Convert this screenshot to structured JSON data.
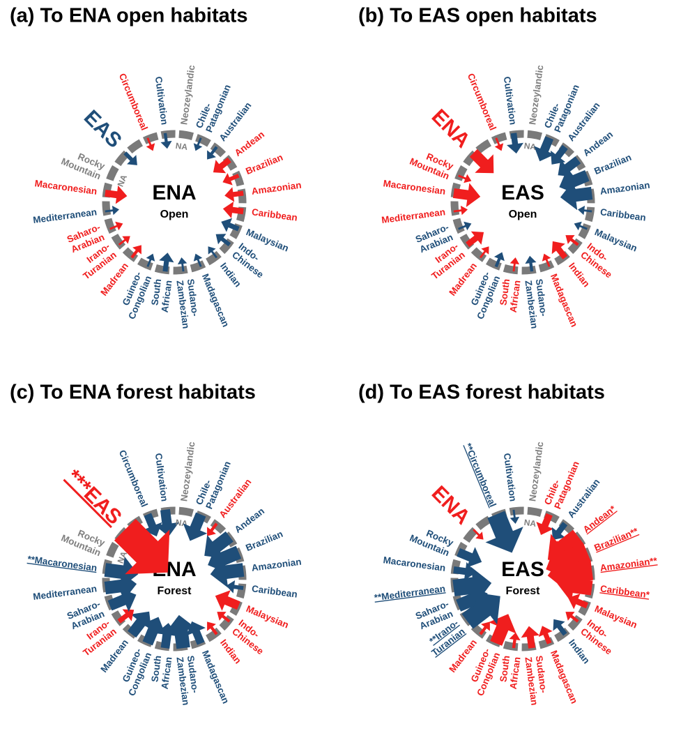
{
  "panels": [
    {
      "title": "(a) To ENA open habitats",
      "center": "ENA",
      "subcenter": "Open",
      "source": {
        "label": [
          "EAS"
        ],
        "color": "#1f4e79",
        "value": 3
      },
      "regions": [
        {
          "label": [
            "Cultivation"
          ],
          "color": "#1f4e79",
          "value": 2
        },
        {
          "label": [
            "Neozeylandic"
          ],
          "color": "#7f7f7f",
          "note": "NA"
        },
        {
          "label": [
            "Chile-",
            "Patagonian"
          ],
          "color": "#1f4e79",
          "value": 1
        },
        {
          "label": [
            "Australian"
          ],
          "color": "#1f4e79",
          "value": 2
        },
        {
          "label": [
            "Andean"
          ],
          "color": "#f01e1e",
          "value": 5
        },
        {
          "label": [
            "Brazilian"
          ],
          "color": "#f01e1e",
          "value": 3
        },
        {
          "label": [
            "Amazonian"
          ],
          "color": "#f01e1e",
          "value": 4
        },
        {
          "label": [
            "Caribbean"
          ],
          "color": "#f01e1e",
          "value": 5
        },
        {
          "label": [
            "Malaysian"
          ],
          "color": "#1f4e79",
          "value": 4
        },
        {
          "label": [
            "Indo-",
            "Chinese"
          ],
          "color": "#1f4e79",
          "value": 3
        },
        {
          "label": [
            "Indian"
          ],
          "color": "#1f4e79",
          "value": 1
        },
        {
          "label": [
            "Madagascan"
          ],
          "color": "#1f4e79",
          "value": 1
        },
        {
          "label": [
            "Sudano-",
            "Zambezian"
          ],
          "color": "#1f4e79",
          "value": 1
        },
        {
          "label": [
            "South",
            "African"
          ],
          "color": "#1f4e79",
          "value": 4
        },
        {
          "label": [
            "Guineo-",
            "Congolian"
          ],
          "color": "#1f4e79",
          "value": 1
        },
        {
          "label": [
            "Madrean"
          ],
          "color": "#f01e1e",
          "value": 2
        },
        {
          "label": [
            "Irano-",
            "Turanian"
          ],
          "color": "#f01e1e",
          "value": 1
        },
        {
          "label": [
            "Saharo-",
            "Arabian"
          ],
          "color": "#f01e1e",
          "value": 1
        },
        {
          "label": [
            "Mediterranean"
          ],
          "color": "#1f4e79",
          "value": 1
        },
        {
          "label": [
            "Macaronesian"
          ],
          "color": "#f01e1e",
          "value": 6
        },
        {
          "label": [
            "Rocky",
            "Mountain"
          ],
          "color": "#7f7f7f",
          "note": "NA"
        },
        {
          "label": [
            "Circumboreal"
          ],
          "color": "#f01e1e",
          "value": 1
        }
      ]
    },
    {
      "title": "(b) To EAS open habitats",
      "center": "EAS",
      "subcenter": "Open",
      "source": {
        "label": [
          "ENA"
        ],
        "color": "#f01e1e",
        "value": 10
      },
      "regions": [
        {
          "label": [
            "Cultivation"
          ],
          "color": "#1f4e79",
          "value": 5
        },
        {
          "label": [
            "Neozeylandic"
          ],
          "color": "#7f7f7f",
          "note": "NA"
        },
        {
          "label": [
            "Chile-",
            "Patagonian"
          ],
          "color": "#1f4e79",
          "value": 8
        },
        {
          "label": [
            "Australian"
          ],
          "color": "#1f4e79",
          "value": 6
        },
        {
          "label": [
            "Andean"
          ],
          "color": "#1f4e79",
          "value": 8
        },
        {
          "label": [
            "Brazilian"
          ],
          "color": "#1f4e79",
          "value": 11
        },
        {
          "label": [
            "Amazonian"
          ],
          "color": "#1f4e79",
          "value": 12
        },
        {
          "label": [
            "Caribbean"
          ],
          "color": "#1f4e79",
          "value": 1
        },
        {
          "label": [
            "Malaysian"
          ],
          "color": "#1f4e79",
          "value": 1
        },
        {
          "label": [
            "Indo-",
            "Chinese"
          ],
          "color": "#f01e1e",
          "value": 2
        },
        {
          "label": [
            "Indian"
          ],
          "color": "#f01e1e",
          "value": 5
        },
        {
          "label": [
            "Madagascan"
          ],
          "color": "#f01e1e",
          "value": 1
        },
        {
          "label": [
            "Sudano-",
            "Zambezian"
          ],
          "color": "#1f4e79",
          "value": 2
        },
        {
          "label": [
            "South",
            "African"
          ],
          "color": "#f01e1e",
          "value": 1
        },
        {
          "label": [
            "Guineo-",
            "Congolian"
          ],
          "color": "#1f4e79",
          "value": 2
        },
        {
          "label": [
            "Madrean"
          ],
          "color": "#f01e1e",
          "value": 1
        },
        {
          "label": [
            "Irano-",
            "Turanian"
          ],
          "color": "#f01e1e",
          "value": 5
        },
        {
          "label": [
            "Saharo-",
            "Arabian"
          ],
          "color": "#1f4e79",
          "value": 1
        },
        {
          "label": [
            "Mediterranean"
          ],
          "color": "#f01e1e",
          "value": 1
        },
        {
          "label": [
            "Macaronesian"
          ],
          "color": "#f01e1e",
          "value": 9
        },
        {
          "label": [
            "Rocky",
            "Mountain"
          ],
          "color": "#f01e1e",
          "value": 1
        },
        {
          "label": [
            "Circumboreal"
          ],
          "color": "#f01e1e",
          "value": 1
        }
      ]
    },
    {
      "title": "(c) To ENA forest habitats",
      "center": "ENA",
      "subcenter": "Forest",
      "source": {
        "label": [
          "***EAS"
        ],
        "color": "#f01e1e",
        "value": 30,
        "underline": true
      },
      "regions": [
        {
          "label": [
            "Cultivation"
          ],
          "color": "#1f4e79",
          "value": 9
        },
        {
          "label": [
            "Neozeylandic"
          ],
          "color": "#7f7f7f",
          "note": "NA"
        },
        {
          "label": [
            "Chile-",
            "Patagonian"
          ],
          "color": "#1f4e79",
          "value": 10
        },
        {
          "label": [
            "Australian"
          ],
          "color": "#f01e1e",
          "value": 2
        },
        {
          "label": [
            "Andean"
          ],
          "color": "#1f4e79",
          "value": 12
        },
        {
          "label": [
            "Brazilian"
          ],
          "color": "#1f4e79",
          "value": 13
        },
        {
          "label": [
            "Amazonian"
          ],
          "color": "#1f4e79",
          "value": 13
        },
        {
          "label": [
            "Caribbean"
          ],
          "color": "#1f4e79",
          "value": 3
        },
        {
          "label": [
            "Malaysian"
          ],
          "color": "#f01e1e",
          "value": 8
        },
        {
          "label": [
            "Indo-",
            "Chinese"
          ],
          "color": "#f01e1e",
          "value": 2
        },
        {
          "label": [
            "Indian"
          ],
          "color": "#f01e1e",
          "value": 2
        },
        {
          "label": [
            "Madagascan"
          ],
          "color": "#1f4e79",
          "value": 7
        },
        {
          "label": [
            "Sudano-",
            "Zambezian"
          ],
          "color": "#1f4e79",
          "value": 13
        },
        {
          "label": [
            "South",
            "African"
          ],
          "color": "#1f4e79",
          "value": 8
        },
        {
          "label": [
            "Guineo-",
            "Congolian"
          ],
          "color": "#1f4e79",
          "value": 10
        },
        {
          "label": [
            "Madrean"
          ],
          "color": "#1f4e79",
          "value": 10
        },
        {
          "label": [
            "Irano-",
            "Turanian"
          ],
          "color": "#f01e1e",
          "value": 4
        },
        {
          "label": [
            "Saharo-",
            "Arabian"
          ],
          "color": "#1f4e79",
          "value": 10
        },
        {
          "label": [
            "Mediterranean"
          ],
          "color": "#1f4e79",
          "value": 12
        },
        {
          "label": [
            "**Macaronesian"
          ],
          "color": "#1f4e79",
          "value": 13,
          "underline": true
        },
        {
          "label": [
            "Rocky",
            "Mountain"
          ],
          "color": "#7f7f7f",
          "note": "NA"
        },
        {
          "label": [
            "Circumboreal"
          ],
          "color": "#1f4e79",
          "value": 7
        }
      ]
    },
    {
      "title": "(d) To EAS forest habitats",
      "center": "EAS",
      "subcenter": "Forest",
      "source": {
        "label": [
          "ENA"
        ],
        "color": "#f01e1e",
        "value": 1
      },
      "regions": [
        {
          "label": [
            "Cultivation"
          ],
          "color": "#1f4e79",
          "value": 1
        },
        {
          "label": [
            "Neozeylandic"
          ],
          "color": "#7f7f7f",
          "note": "NA"
        },
        {
          "label": [
            "Chile-",
            "Patagonian"
          ],
          "color": "#f01e1e",
          "value": 6
        },
        {
          "label": [
            "Australian"
          ],
          "color": "#1f4e79",
          "value": 5
        },
        {
          "label": [
            "Andean*"
          ],
          "color": "#f01e1e",
          "value": 16,
          "underline": true
        },
        {
          "label": [
            "Brazilian**"
          ],
          "color": "#f01e1e",
          "value": 20,
          "underline": true
        },
        {
          "label": [
            "Amazonian**"
          ],
          "color": "#f01e1e",
          "value": 20,
          "underline": true
        },
        {
          "label": [
            "Caribbean*"
          ],
          "color": "#f01e1e",
          "value": 14,
          "underline": true
        },
        {
          "label": [
            "Malaysian"
          ],
          "color": "#f01e1e",
          "value": 5
        },
        {
          "label": [
            "Indo-",
            "Chinese"
          ],
          "color": "#f01e1e",
          "value": 2
        },
        {
          "label": [
            "Indian"
          ],
          "color": "#1f4e79",
          "value": 4
        },
        {
          "label": [
            "Madagascan"
          ],
          "color": "#f01e1e",
          "value": 4
        },
        {
          "label": [
            "Sudano-",
            "Zambezian"
          ],
          "color": "#f01e1e",
          "value": 6
        },
        {
          "label": [
            "South",
            "African"
          ],
          "color": "#f01e1e",
          "value": 2
        },
        {
          "label": [
            "Guineo-",
            "Congolian"
          ],
          "color": "#f01e1e",
          "value": 12
        },
        {
          "label": [
            "Madrean"
          ],
          "color": "#f01e1e",
          "value": 2
        },
        {
          "label": [
            "**Irano-",
            "Turanian"
          ],
          "color": "#1f4e79",
          "value": 18,
          "underline": true
        },
        {
          "label": [
            "Saharo-",
            "Arabian"
          ],
          "color": "#1f4e79",
          "value": 12
        },
        {
          "label": [
            "**Mediterranean"
          ],
          "color": "#1f4e79",
          "value": 16,
          "underline": true
        },
        {
          "label": [
            "Macaronesian"
          ],
          "color": "#1f4e79",
          "value": 6
        },
        {
          "label": [
            "Rocky",
            "Mountain"
          ],
          "color": "#1f4e79",
          "value": 8
        },
        {
          "label": [
            "**Circumboreal"
          ],
          "color": "#1f4e79",
          "value": 18,
          "underline": true
        }
      ]
    }
  ]
}
